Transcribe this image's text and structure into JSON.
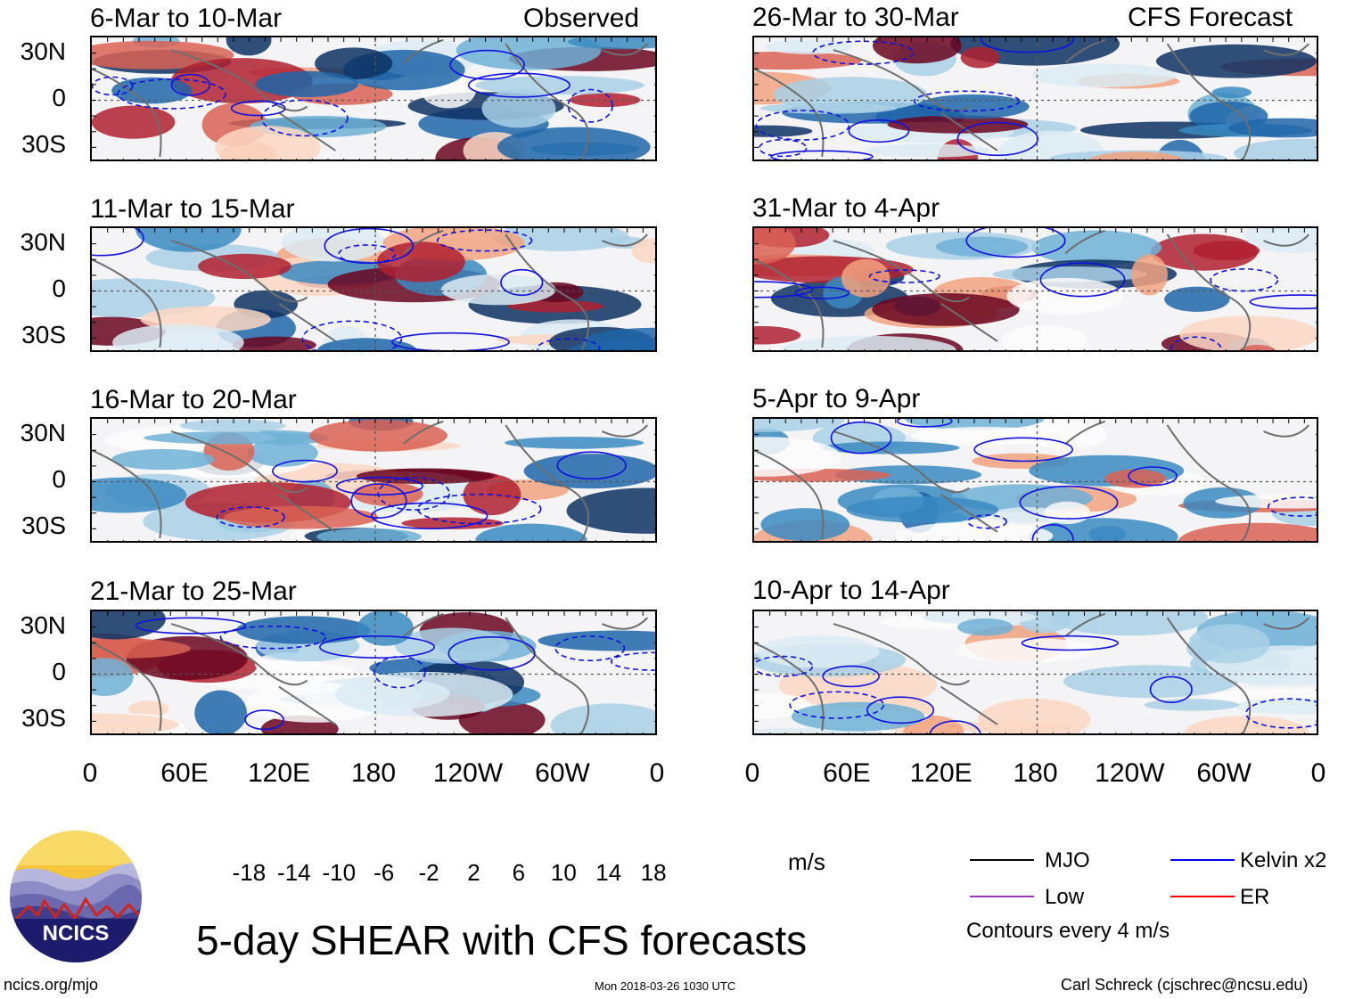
{
  "chart_data": {
    "type": "heatmap",
    "title": "5-day SHEAR with CFS forecasts",
    "units": "m/s",
    "y_ticks": [
      "30N",
      "0",
      "30S"
    ],
    "x_ticks": [
      "0",
      "60E",
      "120E",
      "180",
      "120W",
      "60W",
      "0"
    ],
    "colorbar_ticks": [
      "-18",
      "-14",
      "-10",
      "-6",
      "-2",
      "2",
      "6",
      "10",
      "14",
      "18"
    ],
    "colorbar_colors": [
      "#0d3162",
      "#1f65a8",
      "#3a8ac1",
      "#6fb0d6",
      "#a9d0e6",
      "#dcebf3",
      "#fbfbfb",
      "#fbd7c3",
      "#f1a27f",
      "#d96154",
      "#b0202f",
      "#6a0520"
    ],
    "observed_label": "Observed",
    "forecast_label": "CFS Forecast",
    "observed_panels": [
      {
        "title": "6-Mar to 10-Mar"
      },
      {
        "title": "11-Mar to 15-Mar"
      },
      {
        "title": "16-Mar to 20-Mar"
      },
      {
        "title": "21-Mar to 25-Mar"
      }
    ],
    "forecast_panels": [
      {
        "title": "26-Mar to 30-Mar"
      },
      {
        "title": "31-Mar to 4-Apr"
      },
      {
        "title": "5-Apr to 9-Apr"
      },
      {
        "title": "10-Apr to 14-Apr"
      }
    ],
    "legend": [
      {
        "label": "MJO",
        "color": "#000000"
      },
      {
        "label": "Kelvin x2",
        "color": "#0000ff"
      },
      {
        "label": "Low",
        "color": "#9932cc"
      },
      {
        "label": "ER",
        "color": "#ff0000"
      }
    ],
    "contour_note": "Contours every 4 m/s"
  },
  "footer": {
    "logo_text": "NCICS",
    "url": "ncics.org/mjo",
    "timestamp": "Mon 2018-03-26 1030 UTC",
    "author": "Carl Schreck (cjschrec@ncsu.edu)"
  }
}
